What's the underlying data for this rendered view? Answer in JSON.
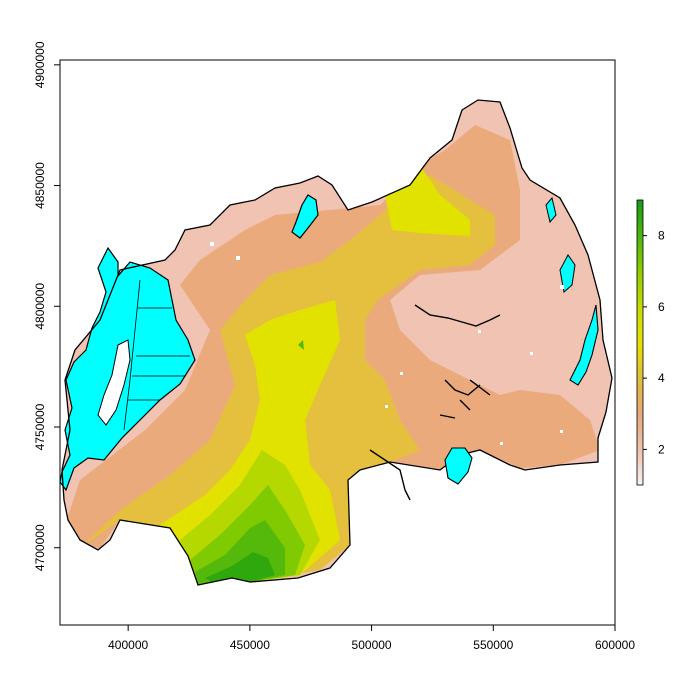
{
  "map": {
    "type": "raster",
    "title": "",
    "xlim": [
      372000,
      600000
    ],
    "ylim": [
      4668000,
      4902000
    ],
    "x_ticks": [
      {
        "value": 400000,
        "label": "400000"
      },
      {
        "value": 450000,
        "label": "450000"
      },
      {
        "value": 500000,
        "label": "500000"
      },
      {
        "value": 550000,
        "label": "550000"
      },
      {
        "value": 600000,
        "label": "600000"
      }
    ],
    "y_ticks": [
      {
        "value": 4700000,
        "label": "4700000"
      },
      {
        "value": 4750000,
        "label": "4750000"
      },
      {
        "value": 4800000,
        "label": "4800000"
      },
      {
        "value": 4850000,
        "label": "4850000"
      },
      {
        "value": 4900000,
        "label": "4900000"
      }
    ],
    "legend": {
      "placement": "right",
      "range": [
        1,
        9
      ],
      "ticks": [
        {
          "value": 2,
          "label": "2"
        },
        {
          "value": 4,
          "label": "4"
        },
        {
          "value": 6,
          "label": "6"
        },
        {
          "value": 8,
          "label": "8"
        }
      ],
      "color_stops": [
        "#f2f2f2",
        "#efc2b0",
        "#e9a775",
        "#e2bd3a",
        "#e6e200",
        "#a9d600",
        "#5cbd0a",
        "#1a9a15"
      ]
    },
    "colors": {
      "water": "#00ffff",
      "band_1": "#f0c3b2",
      "band_2": "#eaaa7c",
      "band_3": "#e5c03f",
      "band_4": "#e2e200",
      "band_5": "#b4d800",
      "band_6": "#7fca00",
      "band_7": "#55b90c",
      "band_8": "#2fa80e",
      "outline": "#000000"
    }
  }
}
